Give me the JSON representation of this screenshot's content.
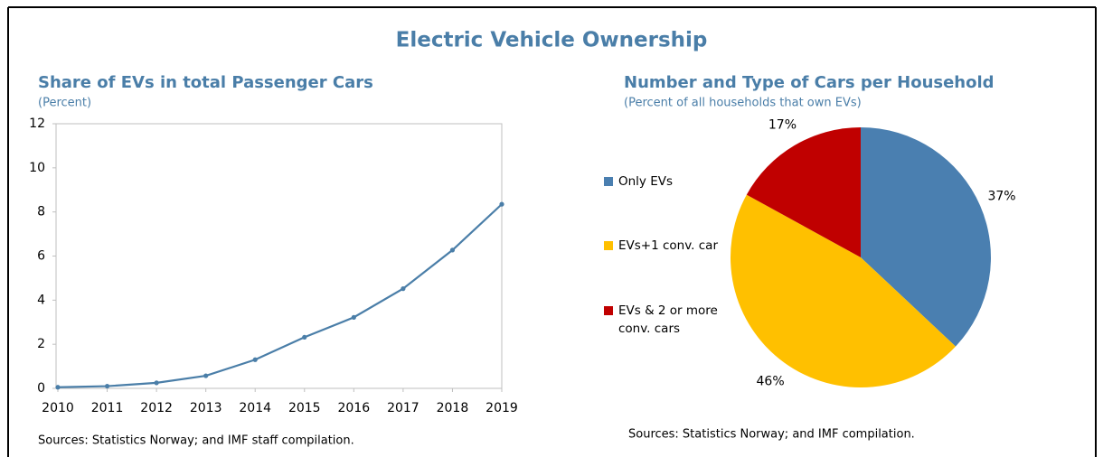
{
  "title": "Electric Vehicle Ownership",
  "chart_data": [
    {
      "type": "line",
      "title": "Share of EVs in total Passenger Cars",
      "subtitle": "(Percent)",
      "x": [
        2010,
        2011,
        2012,
        2013,
        2014,
        2015,
        2016,
        2017,
        2018,
        2019
      ],
      "series": [
        {
          "name": "Share of EVs",
          "color": "#4a7ea8",
          "values": [
            0.05,
            0.1,
            0.25,
            0.57,
            1.3,
            2.32,
            3.22,
            4.52,
            6.27,
            8.35
          ]
        }
      ],
      "xlim": [
        2010,
        2019
      ],
      "xticks": [
        2010,
        2011,
        2012,
        2013,
        2014,
        2015,
        2016,
        2017,
        2018,
        2019
      ],
      "ylim": [
        0,
        12
      ],
      "yticks": [
        0,
        2,
        4,
        6,
        8,
        10,
        12
      ],
      "source": "Sources: Statistics Norway; and IMF staff compilation."
    },
    {
      "type": "pie",
      "title": "Number and Type of Cars per Household",
      "subtitle": "(Percent of all households that own EVs)",
      "categories": [
        "Only EVs",
        "EVs+1 conv. car",
        "EVs & 2 or more conv. cars"
      ],
      "values": [
        37,
        46,
        17
      ],
      "value_labels": [
        "37%",
        "46%",
        "17%"
      ],
      "colors": [
        "#4a7fb0",
        "#ffc000",
        "#c00000"
      ],
      "legend": "left",
      "source": "Sources: Statistics Norway; and IMF compilation."
    }
  ]
}
